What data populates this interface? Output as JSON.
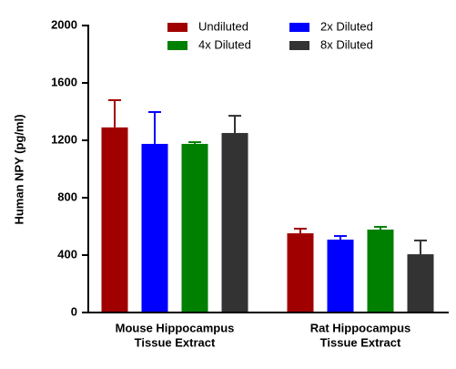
{
  "chart_data": {
    "type": "bar",
    "ylabel": "Human NPY (pg/ml)",
    "categories": [
      [
        "Mouse Hippocampus",
        "Tissue Extract"
      ],
      [
        "Rat Hippocampus",
        "Tissue Extract"
      ]
    ],
    "series": [
      {
        "name": "Undiluted",
        "color": "#a00000",
        "values": [
          1290,
          552
        ],
        "errors": [
          190,
          32
        ]
      },
      {
        "name": "2x Diluted",
        "color": "#0000ff",
        "values": [
          1175,
          508
        ],
        "errors": [
          222,
          25
        ]
      },
      {
        "name": "4x Diluted",
        "color": "#008000",
        "values": [
          1175,
          578
        ],
        "errors": [
          12,
          19
        ]
      },
      {
        "name": "8x Diluted",
        "color": "#333333",
        "values": [
          1251,
          406
        ],
        "errors": [
          120,
          96
        ]
      }
    ],
    "ylim": [
      0,
      2000
    ],
    "yticks": [
      0,
      400,
      800,
      1200,
      1600,
      2000
    ],
    "legend": "top"
  }
}
